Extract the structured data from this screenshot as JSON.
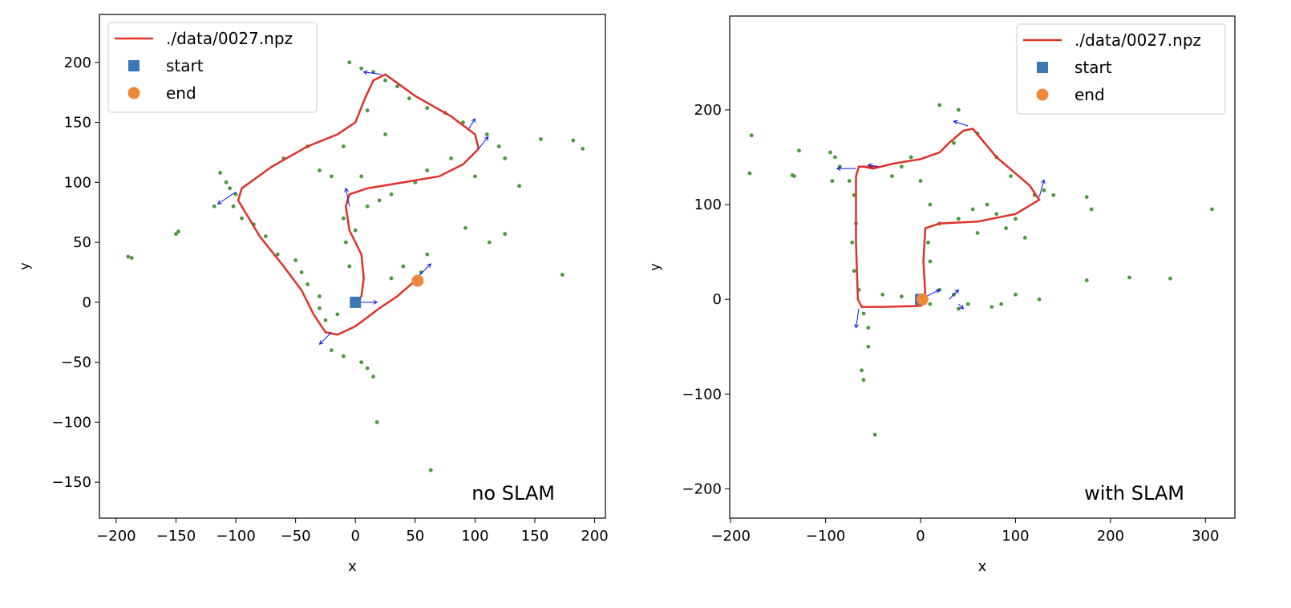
{
  "chart_data": [
    {
      "type": "scatter",
      "annotation": "no SLAM",
      "xlabel": "x",
      "ylabel": "y",
      "xlim": [
        -214,
        209
      ],
      "ylim": [
        -180,
        240
      ],
      "xticks": [
        {
          "value": -200,
          "label": "−200"
        },
        {
          "value": -150,
          "label": "−150"
        },
        {
          "value": -100,
          "label": "−100"
        },
        {
          "value": -50,
          "label": "−50"
        },
        0,
        50,
        100,
        150,
        200
      ],
      "yticks": [
        {
          "value": -150,
          "label": "−150"
        },
        {
          "value": -100,
          "label": "−100"
        },
        {
          "value": -50,
          "label": "−50"
        },
        0,
        50,
        100,
        150,
        200
      ],
      "legend": "upper left",
      "landmarks": {
        "color": "#4a9a3a",
        "x": [
          -190,
          -187,
          -150,
          -148,
          -118,
          -113,
          -108,
          -105,
          -100,
          -102,
          -95,
          -85,
          -75,
          -65,
          -50,
          -45,
          -40,
          -30,
          -25,
          -20,
          -10,
          5,
          10,
          15,
          18,
          63,
          -60,
          -40,
          -30,
          -20,
          -10,
          5,
          -10,
          -8,
          -5,
          0,
          10,
          20,
          30,
          50,
          60,
          80,
          100,
          110,
          120,
          125,
          137,
          112,
          125,
          92,
          155,
          182,
          190,
          173,
          5,
          15,
          25,
          35,
          45,
          60,
          75,
          90,
          -5,
          10,
          25,
          30,
          40,
          50,
          55,
          60,
          -30,
          -15
        ],
        "y": [
          38,
          37,
          57,
          59,
          80,
          108,
          100,
          95,
          90,
          80,
          70,
          65,
          55,
          40,
          35,
          25,
          15,
          5,
          -15,
          -40,
          -45,
          -50,
          -55,
          -62,
          -100,
          -140,
          120,
          130,
          110,
          105,
          130,
          105,
          70,
          50,
          30,
          60,
          80,
          85,
          90,
          100,
          110,
          120,
          105,
          140,
          130,
          120,
          97,
          50,
          57,
          62,
          136,
          135,
          128,
          23,
          195,
          192,
          185,
          180,
          170,
          162,
          158,
          150,
          200,
          160,
          140,
          20,
          30,
          15,
          25,
          40,
          -5,
          -10
        ]
      },
      "arrows": {
        "color": "#0a14f0",
        "x": [
          0,
          -100,
          -20,
          53,
          22,
          103,
          -5,
          95
        ],
        "y": [
          0,
          92,
          -25,
          22,
          190,
          128,
          80,
          145
        ],
        "u": [
          18,
          -15,
          -10,
          10,
          -15,
          8,
          -3,
          5
        ],
        "v": [
          0,
          -10,
          -10,
          10,
          2,
          10,
          15,
          8
        ]
      },
      "series": [
        {
          "name": "./data/0027.npz",
          "kind": "line",
          "color": "#e0312a",
          "x": [
            0,
            5,
            7,
            5,
            -5,
            -8,
            -5,
            10,
            40,
            70,
            90,
            103,
            100,
            80,
            50,
            25,
            15,
            8,
            0,
            -15,
            -40,
            -70,
            -95,
            -98,
            -80,
            -60,
            -45,
            -35,
            -25,
            -15,
            0,
            20,
            35,
            50
          ],
          "y": [
            0,
            5,
            20,
            40,
            60,
            80,
            90,
            95,
            100,
            105,
            115,
            128,
            140,
            155,
            172,
            190,
            185,
            170,
            150,
            140,
            130,
            113,
            95,
            85,
            55,
            30,
            10,
            -10,
            -25,
            -27,
            -20,
            -5,
            5,
            18
          ]
        },
        {
          "name": "start",
          "kind": "square",
          "color": "#3a78b5",
          "x": [
            0
          ],
          "y": [
            0
          ]
        },
        {
          "name": "end",
          "kind": "circle",
          "color": "#f0883a",
          "x": [
            52
          ],
          "y": [
            18
          ]
        }
      ]
    },
    {
      "type": "scatter",
      "annotation": "with SLAM",
      "xlabel": "x",
      "ylabel": "y",
      "xlim": [
        -201,
        331
      ],
      "ylim": [
        -231,
        299
      ],
      "xticks": [
        {
          "value": -200,
          "label": "−200"
        },
        {
          "value": -100,
          "label": "−100"
        },
        0,
        100,
        200,
        300
      ],
      "yticks": [
        {
          "value": -200,
          "label": "−200"
        },
        {
          "value": -100,
          "label": "−100"
        },
        0,
        100,
        200
      ],
      "legend": "upper right",
      "landmarks": {
        "color": "#4a9a3a",
        "x": [
          -178,
          -180,
          -128,
          -135,
          -133,
          -95,
          -90,
          -85,
          -93,
          -75,
          -70,
          -68,
          -72,
          -70,
          -65,
          -60,
          -55,
          -55,
          -62,
          -60,
          -48,
          -40,
          -20,
          10,
          20,
          35,
          40,
          10,
          8,
          10,
          20,
          40,
          55,
          60,
          70,
          80,
          90,
          110,
          100,
          120,
          130,
          140,
          175,
          180,
          175,
          220,
          263,
          307,
          50,
          75,
          85,
          100,
          125,
          40,
          20,
          35,
          60,
          80,
          95,
          -20,
          -30,
          0,
          -10
        ],
        "y": [
          173,
          133,
          157,
          131,
          130,
          155,
          150,
          140,
          125,
          125,
          110,
          80,
          60,
          30,
          10,
          -15,
          -30,
          -50,
          -75,
          -85,
          -143,
          5,
          3,
          -5,
          10,
          5,
          -10,
          40,
          60,
          100,
          80,
          85,
          95,
          70,
          100,
          90,
          75,
          65,
          85,
          110,
          115,
          110,
          108,
          95,
          20,
          23,
          22,
          95,
          -5,
          -8,
          -5,
          5,
          0,
          200,
          205,
          165,
          175,
          150,
          130,
          140,
          130,
          125,
          150
        ]
      },
      "arrows": {
        "color": "#0a14f0",
        "x": [
          0,
          -68,
          -65,
          50,
          125,
          30,
          40,
          -45
        ],
        "y": [
          0,
          138,
          -10,
          183,
          108,
          0,
          -5,
          140
        ],
        "u": [
          20,
          -20,
          -3,
          -15,
          5,
          10,
          5,
          -10
        ],
        "v": [
          10,
          0,
          -20,
          5,
          18,
          10,
          -5,
          2
        ]
      },
      "series": [
        {
          "name": "./data/0027.npz",
          "kind": "line",
          "color": "#e0312a",
          "x": [
            0,
            5,
            3,
            5,
            20,
            60,
            100,
            125,
            115,
            80,
            55,
            45,
            30,
            20,
            0,
            -30,
            -50,
            -60,
            -45,
            -65,
            -68,
            -68,
            -66,
            -62,
            -40,
            0,
            5
          ],
          "y": [
            0,
            5,
            40,
            75,
            80,
            82,
            90,
            105,
            120,
            150,
            180,
            178,
            165,
            155,
            148,
            143,
            138,
            140,
            140,
            140,
            130,
            60,
            0,
            -8,
            -8,
            -7,
            -3
          ]
        },
        {
          "name": "start",
          "kind": "square",
          "color": "#3a78b5",
          "x": [
            0
          ],
          "y": [
            0
          ]
        },
        {
          "name": "end",
          "kind": "circle",
          "color": "#f0883a",
          "x": [
            2
          ],
          "y": [
            0
          ]
        }
      ]
    }
  ]
}
